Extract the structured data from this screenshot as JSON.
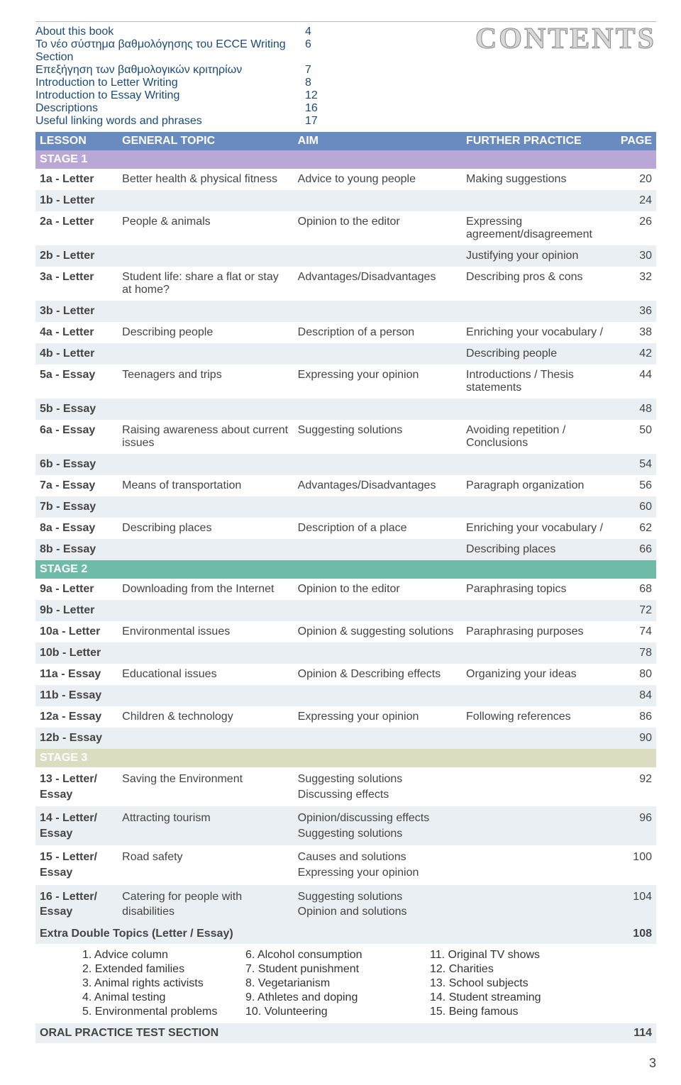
{
  "contents_title": "CONTENTS",
  "intro": [
    {
      "label": "About this book",
      "page": "4"
    },
    {
      "label": "Το νέο σύστημα βαθμολόγησης του ECCE Writing Section",
      "page": "6"
    },
    {
      "label": "Επεξήγηση των βαθμολογικών κριτηρίων",
      "page": "7"
    },
    {
      "label": "Introduction to Letter Writing",
      "page": "8"
    },
    {
      "label": "Introduction to Essay Writing",
      "page": "12"
    },
    {
      "label": "Descriptions",
      "page": "16"
    },
    {
      "label": "Useful linking words and phrases",
      "page": "17"
    }
  ],
  "headers": {
    "lesson": "LESSON",
    "topic": "GENERAL TOPIC",
    "aim": "AIM",
    "further": "FURTHER PRACTICE",
    "page": "PAGE"
  },
  "stage1_label": "STAGE 1",
  "stage2_label": "STAGE 2",
  "stage3_label": "STAGE 3",
  "s1": [
    {
      "lesson": "1a - Letter",
      "topic": "Better health & physical fitness",
      "aim": "Advice to young people",
      "further": "Making suggestions",
      "page": "20",
      "cls": "odd"
    },
    {
      "lesson": "1b - Letter",
      "topic": "",
      "aim": "",
      "further": "",
      "page": "24",
      "cls": "even"
    },
    {
      "lesson": "2a - Letter",
      "topic": "People & animals",
      "aim": "Opinion to the editor",
      "further": "Expressing agreement/disagreement",
      "page": "26",
      "cls": "odd"
    },
    {
      "lesson": "2b - Letter",
      "topic": "",
      "aim": "",
      "further": "Justifying your opinion",
      "page": "30",
      "cls": "even"
    },
    {
      "lesson": "3a - Letter",
      "topic": "Student life: share a flat or stay at home?",
      "aim": "Advantages/Disadvantages",
      "further": "Describing pros & cons",
      "page": "32",
      "cls": "odd"
    },
    {
      "lesson": "3b - Letter",
      "topic": "",
      "aim": "",
      "further": "",
      "page": "36",
      "cls": "even"
    },
    {
      "lesson": "4a - Letter",
      "topic": "Describing people",
      "aim": "Description of a person",
      "further": "Enriching your vocabulary /",
      "page": "38",
      "cls": "odd"
    },
    {
      "lesson": "4b - Letter",
      "topic": "",
      "aim": "",
      "further": "Describing people",
      "page": "42",
      "cls": "even"
    },
    {
      "lesson": "5a - Essay",
      "topic": "Teenagers and trips",
      "aim": "Expressing your opinion",
      "further": "Introductions / Thesis statements",
      "page": "44",
      "cls": "odd"
    },
    {
      "lesson": "5b - Essay",
      "topic": "",
      "aim": "",
      "further": "",
      "page": "48",
      "cls": "even"
    },
    {
      "lesson": "6a - Essay",
      "topic": "Raising awareness about current issues",
      "aim": "Suggesting solutions",
      "further": "Avoiding repetition / Conclusions",
      "page": "50",
      "cls": "odd"
    },
    {
      "lesson": "6b - Essay",
      "topic": "",
      "aim": "",
      "further": "",
      "page": "54",
      "cls": "even"
    },
    {
      "lesson": "7a - Essay",
      "topic": "Means of transportation",
      "aim": "Advantages/Disadvantages",
      "further": "Paragraph organization",
      "page": "56",
      "cls": "odd"
    },
    {
      "lesson": "7b - Essay",
      "topic": "",
      "aim": "",
      "further": "",
      "page": "60",
      "cls": "even"
    },
    {
      "lesson": "8a - Essay",
      "topic": "Describing places",
      "aim": "Description of a place",
      "further": "Enriching your vocabulary /",
      "page": "62",
      "cls": "odd"
    },
    {
      "lesson": "8b - Essay",
      "topic": "",
      "aim": "",
      "further": "Describing places",
      "page": "66",
      "cls": "even"
    }
  ],
  "s2": [
    {
      "lesson": "9a - Letter",
      "topic": "Downloading from the Internet",
      "aim": "Opinion to the editor",
      "further": "Paraphrasing topics",
      "page": "68",
      "cls": "odd"
    },
    {
      "lesson": "9b - Letter",
      "topic": "",
      "aim": "",
      "further": "",
      "page": "72",
      "cls": "even"
    },
    {
      "lesson": "10a - Letter",
      "topic": "Environmental issues",
      "aim": "Opinion & suggesting solutions",
      "further": "Paraphrasing purposes",
      "page": "74",
      "cls": "odd"
    },
    {
      "lesson": "10b - Letter",
      "topic": "",
      "aim": "",
      "further": "",
      "page": "78",
      "cls": "even"
    },
    {
      "lesson": "11a - Essay",
      "topic": "Educational issues",
      "aim": "Opinion & Describing effects",
      "further": "Organizing your ideas",
      "page": "80",
      "cls": "odd"
    },
    {
      "lesson": "11b - Essay",
      "topic": "",
      "aim": "",
      "further": "",
      "page": "84",
      "cls": "even"
    },
    {
      "lesson": "12a - Essay",
      "topic": "Children & technology",
      "aim": "Expressing your opinion",
      "further": "Following references",
      "page": "86",
      "cls": "odd"
    },
    {
      "lesson": "12b - Essay",
      "topic": "",
      "aim": "",
      "further": "",
      "page": "90",
      "cls": "even"
    }
  ],
  "s3": [
    {
      "lesson": "13 - Letter/\nEssay",
      "topic": "Saving the Environment",
      "aim": "Suggesting solutions\nDiscussing effects",
      "further": "",
      "page": "92",
      "cls": "odd"
    },
    {
      "lesson": "14 - Letter/\nEssay",
      "topic": "Attracting tourism",
      "aim": "Opinion/discussing effects\nSuggesting solutions",
      "further": "",
      "page": "96",
      "cls": "even"
    },
    {
      "lesson": "15 - Letter/\nEssay",
      "topic": "Road safety",
      "aim": "Causes and solutions\nExpressing your opinion",
      "further": "",
      "page": "100",
      "cls": "odd"
    },
    {
      "lesson": "16 - Letter/\nEssay",
      "topic": "Catering for people with disabilities",
      "aim": "Suggesting solutions\nOpinion and solutions",
      "further": "",
      "page": "104",
      "cls": "even"
    }
  ],
  "extra": {
    "label": "Extra Double Topics (Letter / Essay)",
    "page": "108"
  },
  "topics": {
    "col1": [
      "1. Advice column",
      "2. Extended families",
      "3. Animal rights activists",
      "4. Animal testing",
      "5. Environmental problems"
    ],
    "col2": [
      "6. Alcohol consumption",
      "7. Student punishment",
      "8. Vegetarianism",
      "9. Athletes and doping",
      "10. Volunteering"
    ],
    "col3": [
      "11. Original TV shows",
      "12. Charities",
      "13. School subjects",
      "14. Student streaming",
      "15. Being famous"
    ]
  },
  "oral": {
    "label": "ORAL PRACTICE TEST SECTION",
    "page": "114"
  },
  "page_number": "3"
}
